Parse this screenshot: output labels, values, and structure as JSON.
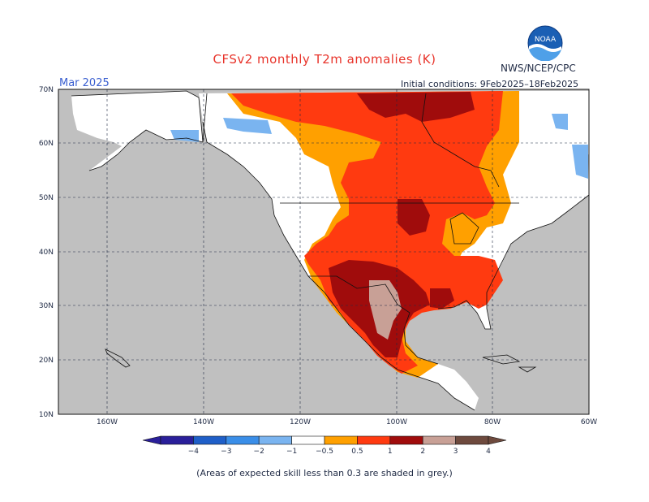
{
  "title": "CFSv2 monthly T2m anomalies (K)",
  "agency": "NWS/NCEP/CPC",
  "logo": "NOAA",
  "month": "Mar 2025",
  "initial_conditions": "Initial conditions: 9Feb2025–18Feb2025",
  "lat_labels": [
    "70N",
    "60N",
    "50N",
    "40N",
    "30N",
    "20N",
    "10N"
  ],
  "lon_labels": [
    "160W",
    "140W",
    "120W",
    "100W",
    "80W",
    "60W"
  ],
  "colorbar": {
    "tick_labels": [
      "−4",
      "−3",
      "−2",
      "−1",
      "−0.5",
      "0.5",
      "1",
      "2",
      "3",
      "4"
    ],
    "colors": [
      "#2a1f9a",
      "#1f5fc8",
      "#3a8ee8",
      "#7ab4f0",
      "#ffffff",
      "#ffa000",
      "#ff3a10",
      "#a00c0c",
      "#c8a096",
      "#6e4a3e"
    ]
  },
  "footnote": "(Areas of expected skill less than 0.3 are shaded in grey.)",
  "colors": {
    "grey_skill": "#c0c0c0",
    "ocean": "#c0c0c0"
  }
}
